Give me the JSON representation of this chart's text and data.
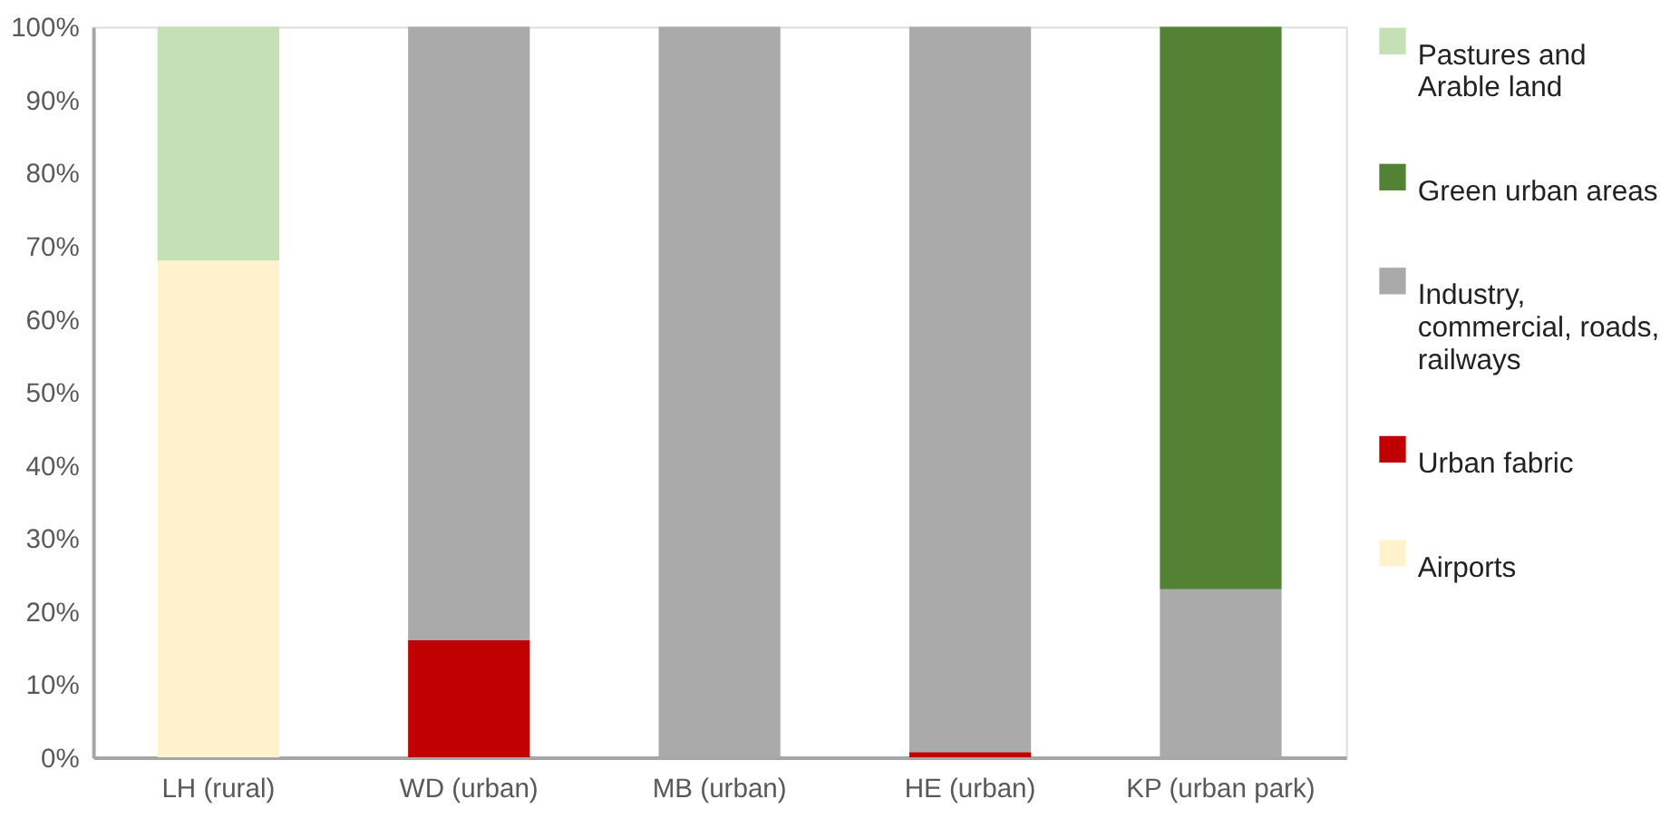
{
  "chart_data": {
    "type": "bar",
    "stacked": true,
    "categories": [
      "LH (rural)",
      "WD (urban)",
      "MB (urban)",
      "HE (urban)",
      "KP (urban park)"
    ],
    "series": [
      {
        "name": "Airports",
        "color": "#fff2cc",
        "values": [
          68,
          0,
          0,
          0,
          0
        ]
      },
      {
        "name": "Urban fabric",
        "color": "#c00000",
        "values": [
          0,
          16,
          0,
          0.7,
          0
        ]
      },
      {
        "name": "Industry, commercial, roads, railways",
        "color": "#aaaaaa",
        "values": [
          0,
          84,
          100,
          99.3,
          23
        ]
      },
      {
        "name": "Green urban areas",
        "color": "#548235",
        "values": [
          0,
          0,
          0,
          0,
          77
        ]
      },
      {
        "name": "Pastures and Arable land",
        "color": "#c5e0b4",
        "values": [
          32,
          0,
          0,
          0,
          0
        ]
      }
    ],
    "ylim": [
      0,
      100
    ],
    "yticks": [
      {
        "value": 0,
        "label": "0%"
      },
      {
        "value": 10,
        "label": "10%"
      },
      {
        "value": 20,
        "label": "20%"
      },
      {
        "value": 30,
        "label": "30%"
      },
      {
        "value": 40,
        "label": "40%"
      },
      {
        "value": 50,
        "label": "50%"
      },
      {
        "value": 60,
        "label": "60%"
      },
      {
        "value": 70,
        "label": "70%"
      },
      {
        "value": 80,
        "label": "80%"
      },
      {
        "value": 90,
        "label": "90%"
      },
      {
        "value": 100,
        "label": "100%"
      }
    ],
    "grid": false,
    "legend": "right"
  }
}
